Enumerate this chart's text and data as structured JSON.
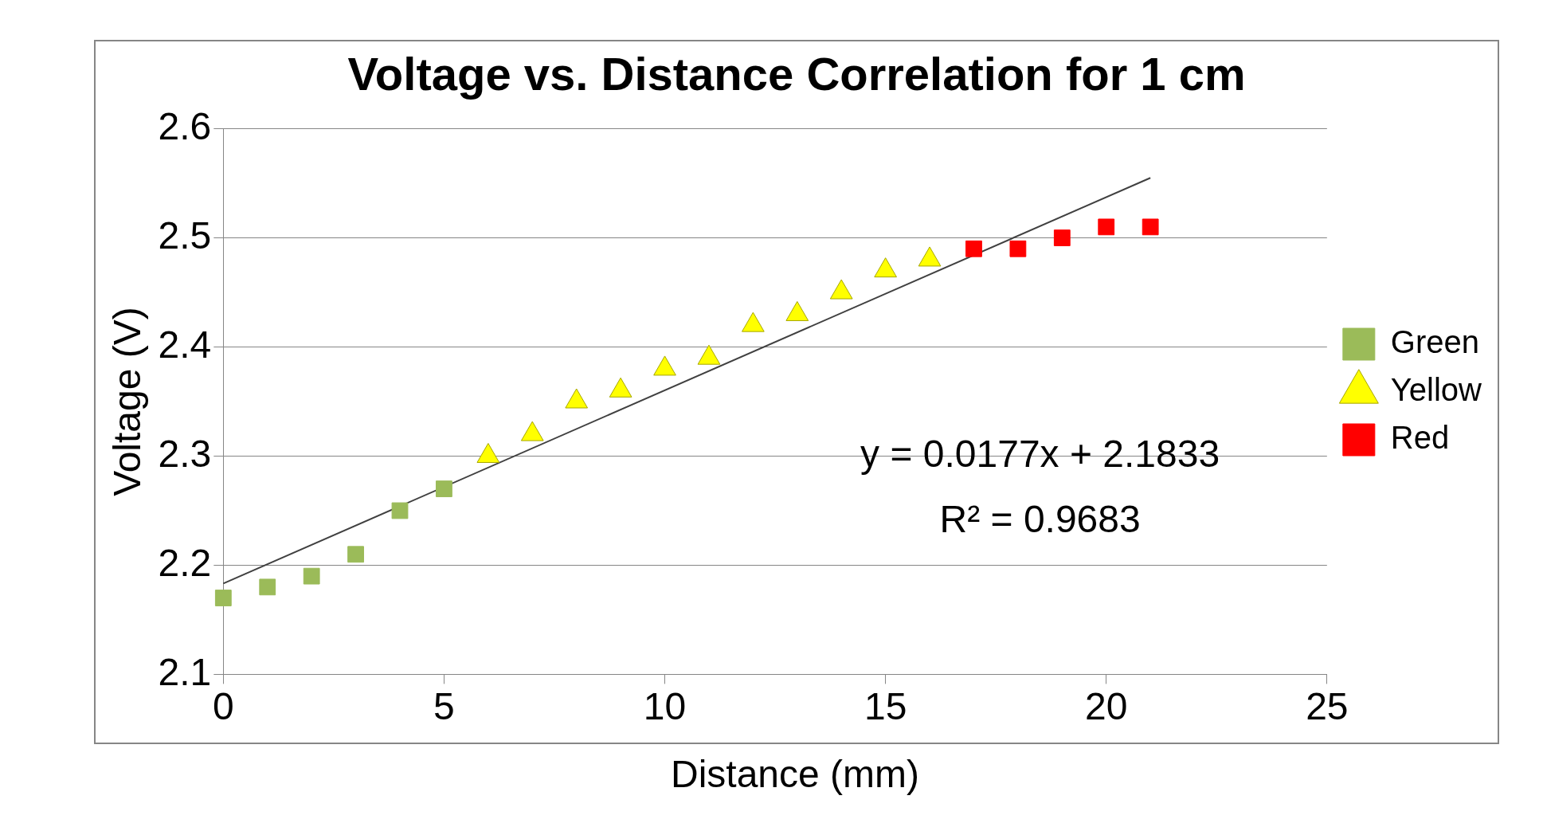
{
  "chart_data": {
    "type": "scatter",
    "title": "Voltage vs. Distance Correlation for 1 cm",
    "xlabel": "Distance (mm)",
    "ylabel": "Voltage (V)",
    "xlim": [
      0,
      25
    ],
    "xticks": [
      0,
      5,
      10,
      15,
      20,
      25
    ],
    "ylim": [
      2.1,
      2.6
    ],
    "yticks": [
      2.1,
      2.2,
      2.3,
      2.4,
      2.5,
      2.6
    ],
    "grid": "y",
    "legend": "right",
    "annotations": [
      "y = 0.0177x + 2.1833",
      "R² = 0.9683"
    ],
    "series": [
      {
        "name": "Green",
        "color": "#9bbb59",
        "marker": "square",
        "x": [
          0,
          1,
          2,
          3,
          4,
          5
        ],
        "values": [
          2.17,
          2.18,
          2.19,
          2.21,
          2.25,
          2.27
        ]
      },
      {
        "name": "Yellow",
        "color": "#ffff00",
        "marker": "triangle",
        "x": [
          6,
          7,
          8,
          9,
          10,
          11,
          12,
          13,
          14,
          15,
          16
        ],
        "values": [
          2.3,
          2.32,
          2.35,
          2.36,
          2.38,
          2.39,
          2.42,
          2.43,
          2.45,
          2.47,
          2.48
        ]
      },
      {
        "name": "Red",
        "color": "#ff0000",
        "marker": "square",
        "x": [
          17,
          18,
          19,
          20,
          21
        ],
        "values": [
          2.49,
          2.49,
          2.5,
          2.51,
          2.51
        ]
      },
      {
        "type": "line",
        "color": "#404040",
        "marker": "none",
        "x": [
          0,
          21
        ],
        "values": [
          2.1833,
          2.555
        ]
      }
    ]
  }
}
